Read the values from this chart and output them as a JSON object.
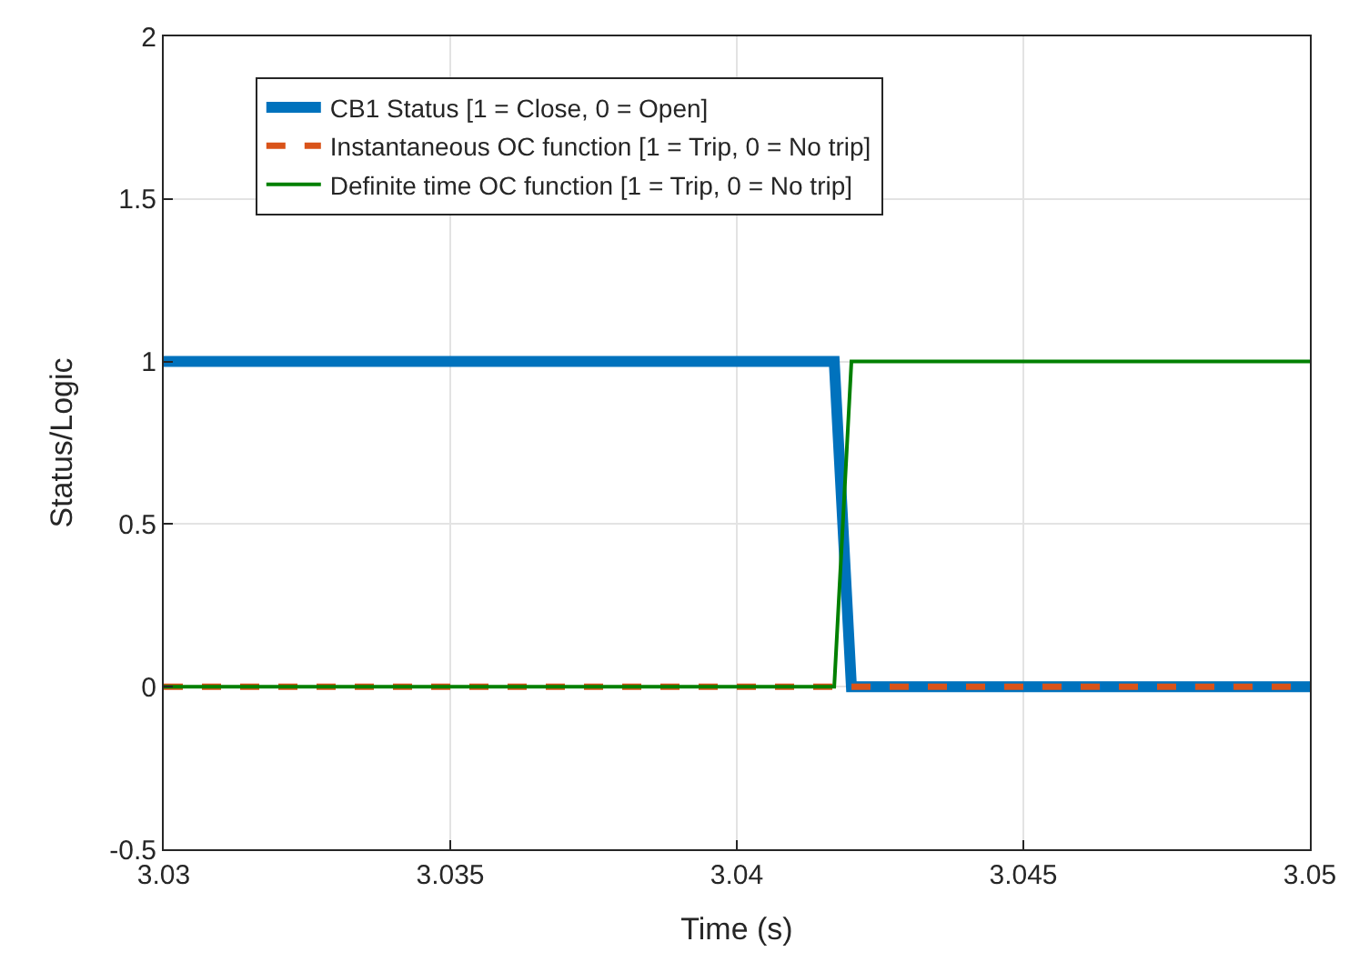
{
  "chart_data": {
    "type": "line",
    "xlabel": "Time (s)",
    "ylabel": "Status/Logic",
    "xlim": [
      3.03,
      3.05
    ],
    "xticks": [
      3.03,
      3.035,
      3.04,
      3.045,
      3.05
    ],
    "ylim": [
      -0.5,
      2
    ],
    "yticks": [
      -0.5,
      0,
      0.5,
      1,
      1.5,
      2
    ],
    "grid": true,
    "legend": "top left",
    "series": [
      {
        "name": "CB1 Status [1 = Close, 0 = Open]",
        "color": "#0072bd",
        "line_style": "solid",
        "x": [
          3.03,
          3.0417,
          3.042,
          3.05
        ],
        "values": [
          1,
          1,
          0,
          0
        ]
      },
      {
        "name": "Instantaneous OC function [1 = Trip, 0 = No trip]",
        "color": "#d95319",
        "line_style": "dashed",
        "x": [
          3.03,
          3.05
        ],
        "values": [
          0,
          0
        ]
      },
      {
        "name": "Definite time OC function [1 = Trip, 0 = No trip]",
        "color": "#008000",
        "line_style": "solid",
        "x": [
          3.03,
          3.0417,
          3.042,
          3.05
        ],
        "values": [
          0,
          0,
          1,
          1
        ]
      }
    ]
  }
}
